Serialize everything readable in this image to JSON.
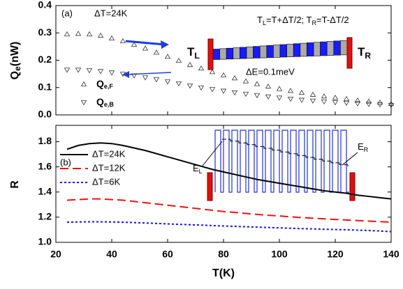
{
  "chart_data": [
    {
      "type": "scatter",
      "panel_label": "(a)",
      "annotation": "ΔT=24K",
      "formula": [
        "T",
        "L",
        "=T+ΔT/2; T",
        "R",
        "=T-ΔT/2"
      ],
      "left_label": [
        "T",
        "L"
      ],
      "right_label": [
        "T",
        "R"
      ],
      "energy_label": "ΔE=0.1meV",
      "ylabel": [
        "Q",
        "e",
        "(nW)"
      ],
      "xlim": [
        20,
        140
      ],
      "ylim": [
        0,
        0.4
      ],
      "yticks": [
        {
          "value": 0,
          "label": "0.0"
        },
        {
          "value": 0.1,
          "label": "0.1"
        },
        {
          "value": 0.2,
          "label": "0.2"
        },
        {
          "value": 0.3,
          "label": "0.3"
        },
        {
          "value": 0.4,
          "label": "0.4"
        }
      ],
      "x": [
        24,
        28,
        32,
        36,
        40,
        44,
        48,
        52,
        56,
        60,
        64,
        68,
        72,
        76,
        80,
        84,
        88,
        92,
        96,
        100,
        104,
        108,
        112,
        116,
        120,
        124,
        128,
        132,
        136,
        140
      ],
      "series": [
        {
          "name": "Q",
          "name_sub": "e,F",
          "marker": "triangle-up",
          "color": "#333333",
          "values": [
            0.295,
            0.297,
            0.295,
            0.29,
            0.28,
            0.27,
            0.257,
            0.243,
            0.228,
            0.213,
            0.198,
            0.183,
            0.17,
            0.157,
            0.145,
            0.134,
            0.123,
            0.113,
            0.104,
            0.095,
            0.088,
            0.081,
            0.074,
            0.068,
            0.063,
            0.058,
            0.053,
            0.049,
            0.045,
            0.041
          ]
        },
        {
          "name": "Q",
          "name_sub": "e,B",
          "marker": "triangle-down",
          "color": "#333333",
          "values": [
            0.165,
            0.165,
            0.163,
            0.16,
            0.155,
            0.15,
            0.144,
            0.137,
            0.13,
            0.122,
            0.115,
            0.107,
            0.1,
            0.094,
            0.088,
            0.082,
            0.077,
            0.072,
            0.067,
            0.063,
            0.059,
            0.055,
            0.052,
            0.049,
            0.046,
            0.044,
            0.042,
            0.04,
            0.038,
            0.036
          ]
        }
      ]
    },
    {
      "type": "line",
      "panel_label": "(b)",
      "level_labels": [
        [
          "E",
          "L"
        ],
        [
          "E",
          "R"
        ]
      ],
      "ylabel": "R",
      "xlabel": "T(K)",
      "xlim": [
        20,
        140
      ],
      "xticks": [
        20,
        40,
        60,
        80,
        100,
        120,
        140
      ],
      "ylim": [
        1.0,
        1.93
      ],
      "yticks": [
        {
          "value": 1.0,
          "label": "1.0"
        },
        {
          "value": 1.2,
          "label": "1.2"
        },
        {
          "value": 1.4,
          "label": "1.4"
        },
        {
          "value": 1.6,
          "label": "1.6"
        },
        {
          "value": 1.8,
          "label": "1.8"
        }
      ],
      "x": [
        24,
        28,
        32,
        36,
        40,
        44,
        48,
        52,
        56,
        60,
        64,
        68,
        72,
        76,
        80,
        84,
        88,
        92,
        96,
        100,
        104,
        108,
        112,
        116,
        120,
        124,
        128,
        132,
        136,
        140
      ],
      "series": [
        {
          "name": "ΔT=24K",
          "color": "#000000",
          "dash": "solid",
          "values": [
            1.74,
            1.77,
            1.785,
            1.79,
            1.785,
            1.77,
            1.75,
            1.73,
            1.705,
            1.68,
            1.655,
            1.63,
            1.605,
            1.58,
            1.56,
            1.54,
            1.52,
            1.5,
            1.485,
            1.47,
            1.455,
            1.44,
            1.425,
            1.41,
            1.4,
            1.39,
            1.375,
            1.365,
            1.355,
            1.345
          ]
        },
        {
          "name": "ΔT=12K",
          "color": "#ee1111",
          "dash": "dashed",
          "values": [
            1.335,
            1.34,
            1.345,
            1.345,
            1.34,
            1.335,
            1.325,
            1.315,
            1.305,
            1.295,
            1.285,
            1.275,
            1.265,
            1.255,
            1.245,
            1.238,
            1.23,
            1.222,
            1.215,
            1.21,
            1.203,
            1.197,
            1.192,
            1.187,
            1.182,
            1.178,
            1.173,
            1.169,
            1.165,
            1.16
          ]
        },
        {
          "name": "ΔT=6K",
          "color": "#1111ee",
          "dash": "dotted",
          "values": [
            1.16,
            1.162,
            1.163,
            1.163,
            1.162,
            1.16,
            1.157,
            1.154,
            1.15,
            1.147,
            1.143,
            1.14,
            1.137,
            1.133,
            1.13,
            1.127,
            1.124,
            1.121,
            1.118,
            1.115,
            1.112,
            1.109,
            1.107,
            1.104,
            1.102,
            1.1,
            1.097,
            1.094,
            1.09,
            1.085
          ]
        }
      ]
    }
  ]
}
